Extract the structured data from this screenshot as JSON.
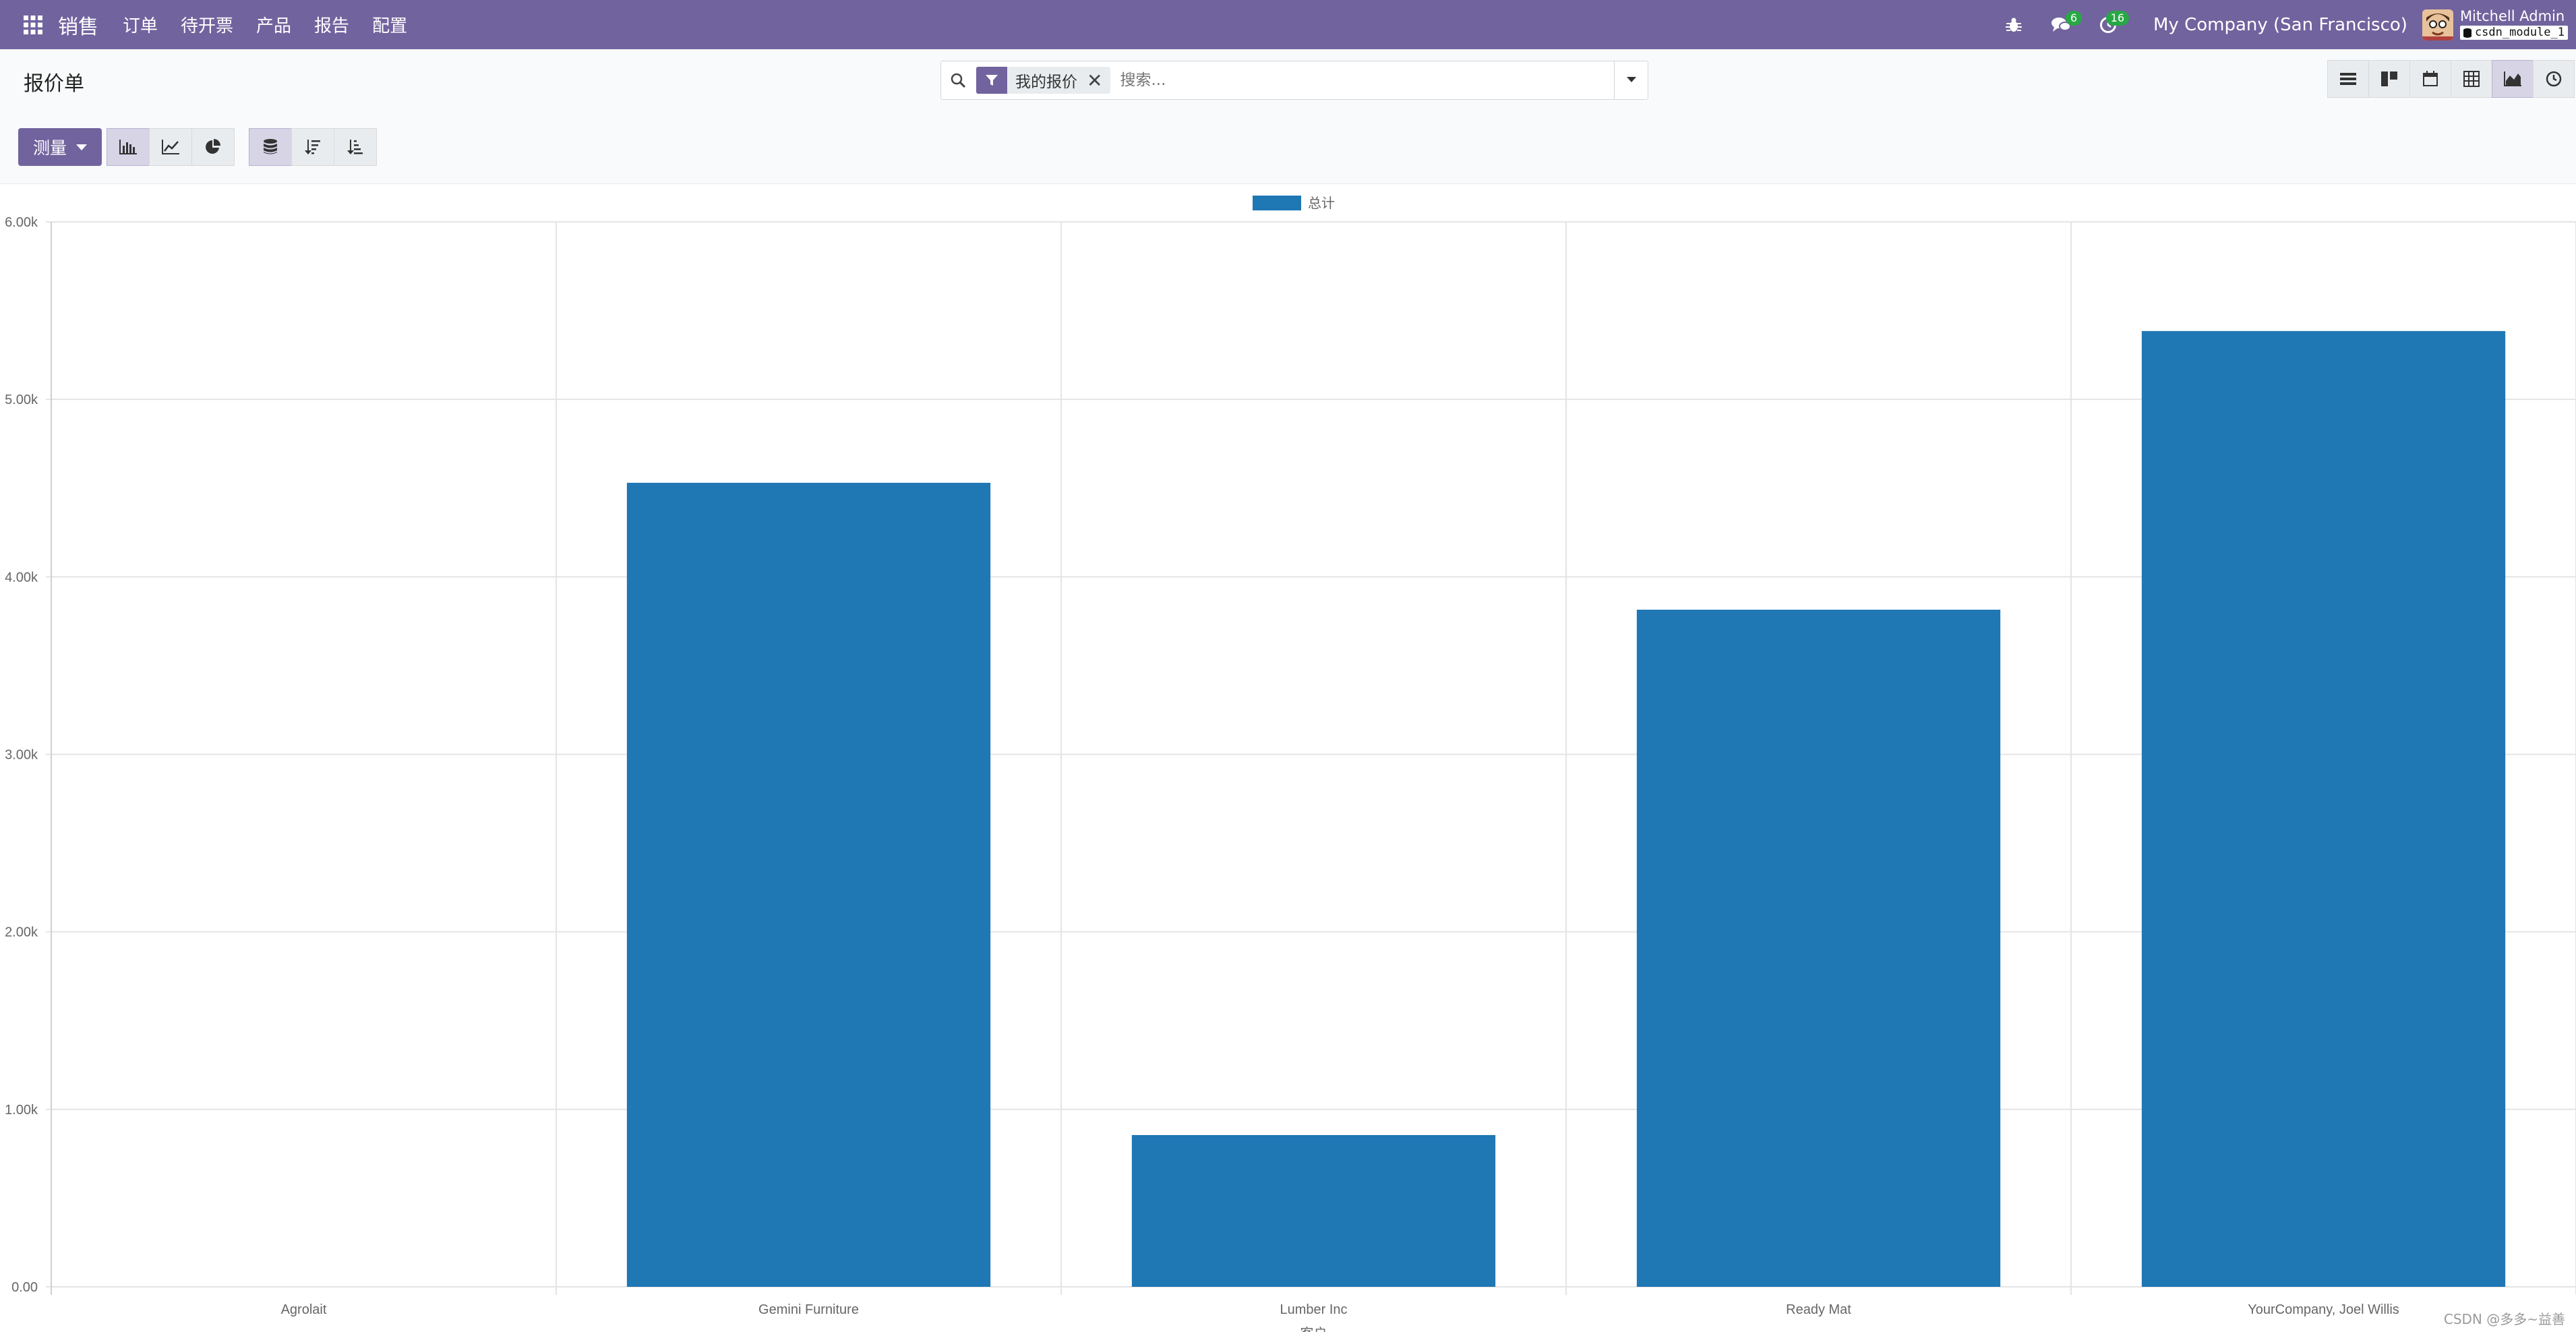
{
  "navbar": {
    "app_name": "销售",
    "menu": [
      "订单",
      "待开票",
      "产品",
      "报告",
      "配置"
    ],
    "messages_badge": "6",
    "activities_badge": "16",
    "company": "My Company (San Francisco)",
    "user_name": "Mitchell Admin",
    "db_name": "csdn_module_1",
    "bg_color": "#71639e"
  },
  "control": {
    "title": "报价单",
    "search": {
      "facet_label": "我的报价",
      "facet_remove": "✕",
      "placeholder": "搜索..."
    },
    "measure_label": "测量",
    "views": [
      "list-view-icon",
      "kanban-view-icon",
      "calendar-view-icon",
      "pivot-view-icon",
      "graph-view-icon",
      "activity-view-icon"
    ],
    "active_view": "graph-view-icon"
  },
  "chart_data": {
    "type": "bar",
    "legend": [
      "总计"
    ],
    "legend_position": "top-center",
    "color": "#1f77b4",
    "categories": [
      "Agrolait",
      "Gemini Furniture",
      "Lumber Inc",
      "Ready Mat",
      "YourCompany, Joel Willis"
    ],
    "series": [
      {
        "name": "总计",
        "values": [
          0,
          4530,
          855,
          3815,
          5385
        ]
      }
    ],
    "ylim": [
      0,
      6000
    ],
    "yticks": [
      "0.00",
      "1.00k",
      "2.00k",
      "3.00k",
      "4.00k",
      "5.00k",
      "6.00k"
    ],
    "xlabel": "客户",
    "grid": true
  },
  "watermark": "CSDN @多多~益善"
}
